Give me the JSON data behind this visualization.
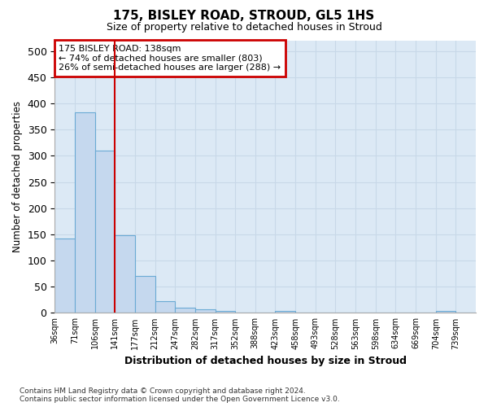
{
  "title_line1": "175, BISLEY ROAD, STROUD, GL5 1HS",
  "title_line2": "Size of property relative to detached houses in Stroud",
  "xlabel": "Distribution of detached houses by size in Stroud",
  "ylabel": "Number of detached properties",
  "footnote": "Contains HM Land Registry data © Crown copyright and database right 2024.\nContains public sector information licensed under the Open Government Licence v3.0.",
  "bin_labels": [
    "36sqm",
    "71sqm",
    "106sqm",
    "141sqm",
    "177sqm",
    "212sqm",
    "247sqm",
    "282sqm",
    "317sqm",
    "352sqm",
    "388sqm",
    "423sqm",
    "458sqm",
    "493sqm",
    "528sqm",
    "563sqm",
    "598sqm",
    "634sqm",
    "669sqm",
    "704sqm",
    "739sqm"
  ],
  "bar_values": [
    142,
    383,
    310,
    149,
    70,
    23,
    10,
    7,
    4,
    0,
    0,
    4,
    0,
    0,
    0,
    0,
    0,
    0,
    0,
    4,
    0
  ],
  "bar_color": "#c5d8ee",
  "bar_edge_color": "#6aaad4",
  "annotation_text": "175 BISLEY ROAD: 138sqm\n← 74% of detached houses are smaller (803)\n26% of semi-detached houses are larger (288) →",
  "annotation_box_color": "#ffffff",
  "annotation_box_edge_color": "#cc0000",
  "vline_color": "#cc0000",
  "vline_bin_index": 3,
  "ylim": [
    0,
    520
  ],
  "yticks": [
    0,
    50,
    100,
    150,
    200,
    250,
    300,
    350,
    400,
    450,
    500
  ],
  "grid_color": "#c8d8e8",
  "bg_color": "#ffffff",
  "plot_bg_color": "#dce9f5"
}
